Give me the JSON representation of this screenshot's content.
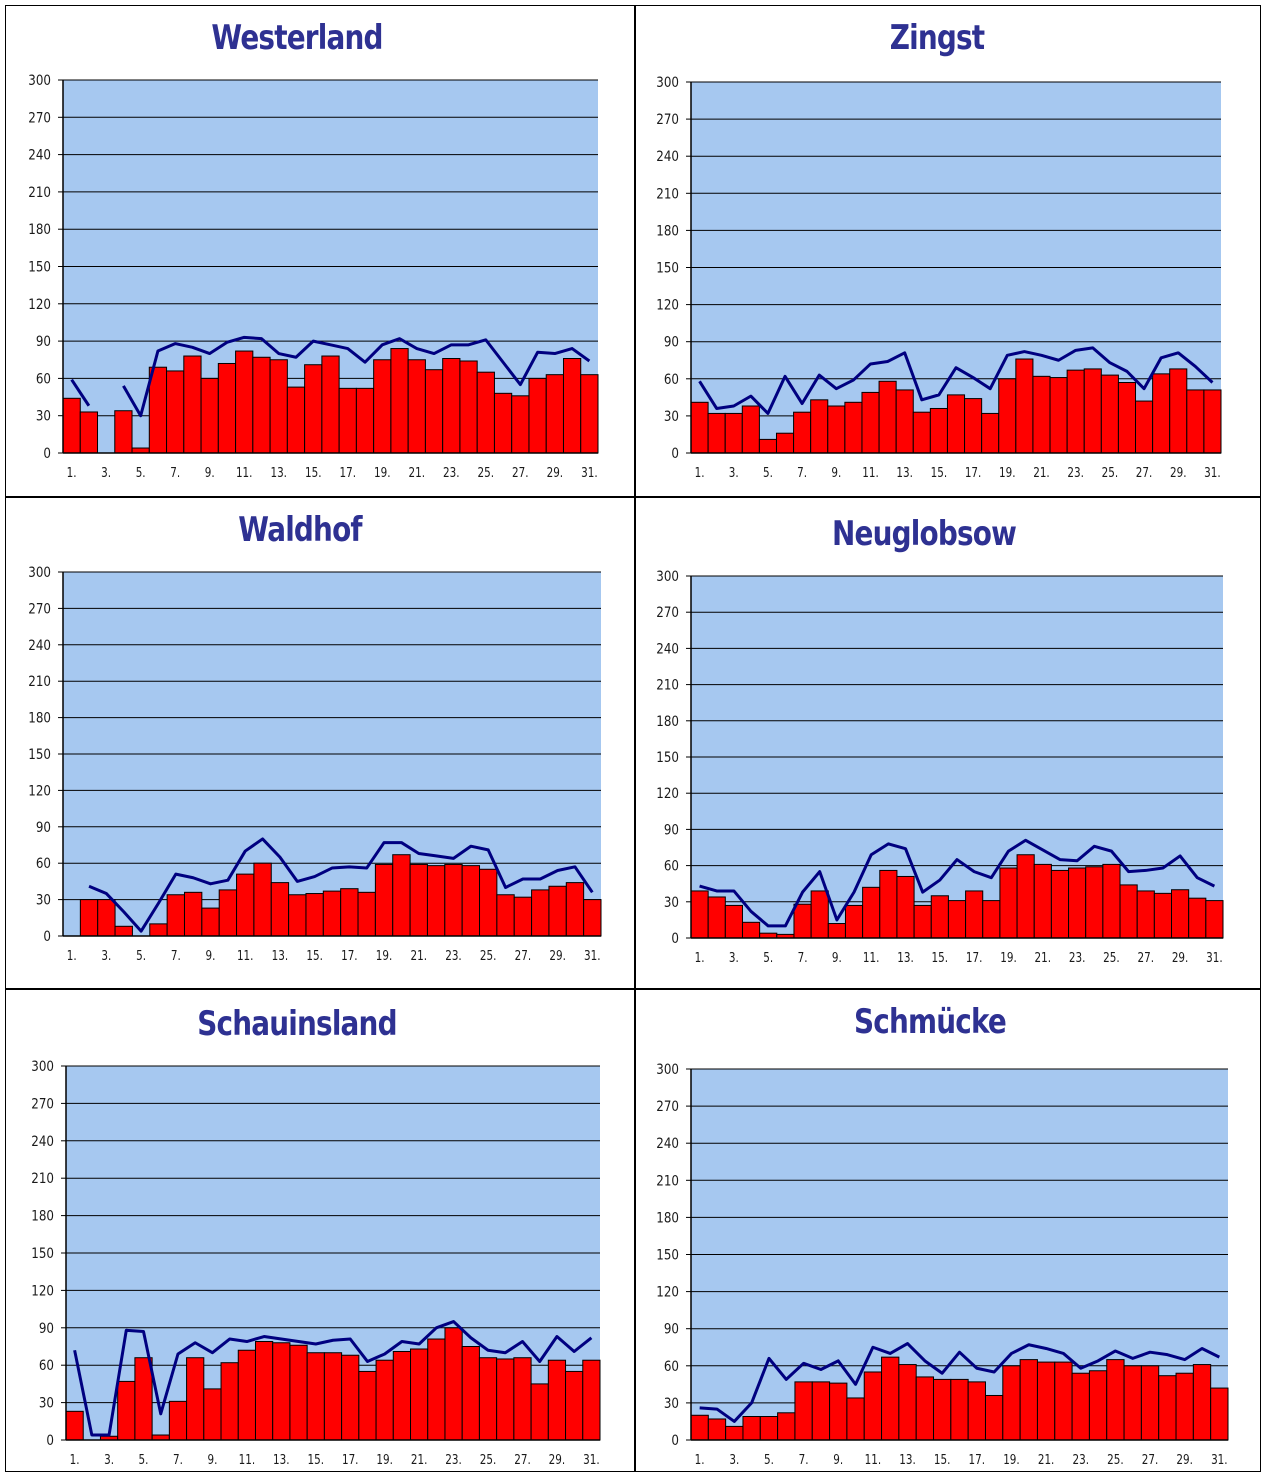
{
  "colors": {
    "plot_bg": "#a6c8f0",
    "bar": "#ff0000",
    "line": "#000080",
    "title": "#2e3192"
  },
  "chart_data": [
    {
      "type": "bar",
      "title": "Westerland",
      "x": [
        "1.",
        "2.",
        "3.",
        "4.",
        "5.",
        "6.",
        "7.",
        "8.",
        "9.",
        "10.",
        "11.",
        "12.",
        "13.",
        "14.",
        "15.",
        "16.",
        "17.",
        "18.",
        "19.",
        "20.",
        "21.",
        "22.",
        "23.",
        "24.",
        "25.",
        "26.",
        "27.",
        "28.",
        "29.",
        "30.",
        "31."
      ],
      "x_tick_labels": [
        "1.",
        "3.",
        "5.",
        "7.",
        "9.",
        "11.",
        "13.",
        "15.",
        "17.",
        "19.",
        "21.",
        "23.",
        "25.",
        "27.",
        "29.",
        "31."
      ],
      "ylim": [
        0,
        300
      ],
      "y_ticks": [
        0,
        30,
        60,
        90,
        120,
        150,
        180,
        210,
        240,
        270,
        300
      ],
      "grid": true,
      "series": [
        {
          "kind": "bar",
          "values": [
            44,
            33,
            0,
            34,
            4,
            69,
            66,
            78,
            60,
            72,
            82,
            77,
            75,
            53,
            71,
            78,
            52,
            52,
            75,
            84,
            75,
            67,
            76,
            74,
            65,
            48,
            46,
            60,
            63,
            76,
            63
          ]
        },
        {
          "kind": "line",
          "values": [
            59,
            38,
            null,
            54,
            30,
            82,
            88,
            85,
            80,
            89,
            93,
            92,
            80,
            77,
            90,
            87,
            84,
            73,
            87,
            92,
            84,
            80,
            87,
            87,
            91,
            73,
            55,
            81,
            80,
            84,
            74
          ]
        }
      ]
    },
    {
      "type": "bar",
      "title": "Zingst",
      "x": [
        "1.",
        "2.",
        "3.",
        "4.",
        "5.",
        "6.",
        "7.",
        "8.",
        "9.",
        "10.",
        "11.",
        "12.",
        "13.",
        "14.",
        "15.",
        "16.",
        "17.",
        "18.",
        "19.",
        "20.",
        "21.",
        "22.",
        "23.",
        "24.",
        "25.",
        "26.",
        "27.",
        "28.",
        "29.",
        "30.",
        "31."
      ],
      "x_tick_labels": [
        "1.",
        "3.",
        "5.",
        "7.",
        "9.",
        "11.",
        "13.",
        "15.",
        "17.",
        "19.",
        "21.",
        "23.",
        "25.",
        "27.",
        "29.",
        "31."
      ],
      "ylim": [
        0,
        300
      ],
      "y_ticks": [
        0,
        30,
        60,
        90,
        120,
        150,
        180,
        210,
        240,
        270,
        300
      ],
      "grid": true,
      "series": [
        {
          "kind": "bar",
          "values": [
            41,
            32,
            32,
            38,
            11,
            16,
            33,
            43,
            38,
            41,
            49,
            58,
            51,
            33,
            36,
            47,
            44,
            32,
            60,
            76,
            62,
            61,
            67,
            68,
            63,
            57,
            42,
            64,
            68,
            51,
            51
          ]
        },
        {
          "kind": "line",
          "values": [
            58,
            36,
            38,
            46,
            32,
            62,
            40,
            63,
            52,
            59,
            72,
            74,
            81,
            43,
            47,
            69,
            61,
            52,
            79,
            82,
            79,
            75,
            83,
            85,
            73,
            66,
            52,
            77,
            81,
            70,
            57
          ]
        }
      ]
    },
    {
      "type": "bar",
      "title": "Waldhof",
      "x": [
        "1.",
        "2.",
        "3.",
        "4.",
        "5.",
        "6.",
        "7.",
        "8.",
        "9.",
        "10.",
        "11.",
        "12.",
        "13.",
        "14.",
        "15.",
        "16.",
        "17.",
        "18.",
        "19.",
        "20.",
        "21.",
        "22.",
        "23.",
        "24.",
        "25.",
        "26.",
        "27.",
        "28.",
        "29.",
        "30.",
        "31."
      ],
      "x_tick_labels": [
        "1.",
        "3.",
        "5.",
        "7.",
        "9.",
        "11.",
        "13.",
        "15.",
        "17.",
        "19.",
        "21.",
        "23.",
        "25.",
        "27.",
        "29.",
        "31."
      ],
      "ylim": [
        0,
        300
      ],
      "y_ticks": [
        0,
        30,
        60,
        90,
        120,
        150,
        180,
        210,
        240,
        270,
        300
      ],
      "grid": true,
      "series": [
        {
          "kind": "bar",
          "values": [
            0,
            30,
            30,
            8,
            0,
            10,
            34,
            36,
            23,
            38,
            51,
            60,
            44,
            34,
            35,
            37,
            39,
            36,
            59,
            67,
            59,
            58,
            59,
            58,
            55,
            34,
            32,
            38,
            41,
            44,
            30
          ]
        },
        {
          "kind": "line",
          "values": [
            null,
            41,
            35,
            20,
            4,
            27,
            51,
            48,
            43,
            46,
            70,
            80,
            65,
            45,
            49,
            56,
            57,
            56,
            77,
            77,
            68,
            66,
            64,
            74,
            71,
            40,
            47,
            47,
            54,
            57,
            36
          ]
        }
      ]
    },
    {
      "type": "bar",
      "title": "Neuglobsow",
      "x": [
        "1.",
        "2.",
        "3.",
        "4.",
        "5.",
        "6.",
        "7.",
        "8.",
        "9.",
        "10.",
        "11.",
        "12.",
        "13.",
        "14.",
        "15.",
        "16.",
        "17.",
        "18.",
        "19.",
        "20.",
        "21.",
        "22.",
        "23.",
        "24.",
        "25.",
        "26.",
        "27.",
        "28.",
        "29.",
        "30.",
        "31."
      ],
      "x_tick_labels": [
        "1.",
        "3.",
        "5.",
        "7.",
        "9.",
        "11.",
        "13.",
        "15.",
        "17.",
        "19.",
        "21.",
        "23.",
        "25.",
        "27.",
        "29.",
        "31."
      ],
      "ylim": [
        0,
        300
      ],
      "y_ticks": [
        0,
        30,
        60,
        90,
        120,
        150,
        180,
        210,
        240,
        270,
        300
      ],
      "grid": true,
      "series": [
        {
          "kind": "bar",
          "values": [
            39,
            34,
            27,
            13,
            4,
            3,
            28,
            39,
            12,
            27,
            42,
            56,
            51,
            27,
            35,
            31,
            39,
            31,
            58,
            69,
            61,
            56,
            58,
            59,
            61,
            44,
            39,
            37,
            40,
            33,
            31
          ]
        },
        {
          "kind": "line",
          "values": [
            43,
            39,
            39,
            22,
            10,
            10,
            38,
            55,
            15,
            38,
            69,
            78,
            74,
            38,
            48,
            65,
            55,
            50,
            72,
            81,
            73,
            65,
            64,
            76,
            72,
            55,
            56,
            58,
            68,
            50,
            43
          ]
        }
      ]
    },
    {
      "type": "bar",
      "title": "Schauinsland",
      "x": [
        "1.",
        "2.",
        "3.",
        "4.",
        "5.",
        "6.",
        "7.",
        "8.",
        "9.",
        "10.",
        "11.",
        "12.",
        "13.",
        "14.",
        "15.",
        "16.",
        "17.",
        "18.",
        "19.",
        "20.",
        "21.",
        "22.",
        "23.",
        "24.",
        "25.",
        "26.",
        "27.",
        "28.",
        "29.",
        "30.",
        "31."
      ],
      "x_tick_labels": [
        "1.",
        "3.",
        "5.",
        "7.",
        "9.",
        "11.",
        "13.",
        "15.",
        "17.",
        "19.",
        "21.",
        "23.",
        "25.",
        "27.",
        "29.",
        "31."
      ],
      "ylim": [
        0,
        300
      ],
      "y_ticks": [
        0,
        30,
        60,
        90,
        120,
        150,
        180,
        210,
        240,
        270,
        300
      ],
      "grid": true,
      "series": [
        {
          "kind": "bar",
          "values": [
            23,
            0,
            3,
            47,
            66,
            4,
            31,
            66,
            41,
            62,
            72,
            79,
            78,
            76,
            70,
            70,
            68,
            55,
            64,
            71,
            73,
            81,
            90,
            75,
            66,
            65,
            66,
            45,
            64,
            55,
            64
          ]
        },
        {
          "kind": "line",
          "values": [
            72,
            4,
            4,
            88,
            87,
            21,
            69,
            78,
            70,
            81,
            79,
            83,
            81,
            79,
            77,
            80,
            81,
            63,
            69,
            79,
            77,
            90,
            95,
            82,
            72,
            70,
            79,
            63,
            83,
            71,
            82
          ]
        }
      ]
    },
    {
      "type": "bar",
      "title": "Schmücke",
      "x": [
        "1.",
        "2.",
        "3.",
        "4.",
        "5.",
        "6.",
        "7.",
        "8.",
        "9.",
        "10.",
        "11.",
        "12.",
        "13.",
        "14.",
        "15.",
        "16.",
        "17.",
        "18.",
        "19.",
        "20.",
        "21.",
        "22.",
        "23.",
        "24.",
        "25.",
        "26.",
        "27.",
        "28.",
        "29.",
        "30.",
        "31."
      ],
      "x_tick_labels": [
        "1.",
        "3.",
        "5.",
        "7.",
        "9.",
        "11.",
        "13.",
        "15.",
        "17.",
        "19.",
        "21.",
        "23.",
        "25.",
        "27.",
        "29.",
        "31."
      ],
      "ylim": [
        0,
        300
      ],
      "y_ticks": [
        0,
        30,
        60,
        90,
        120,
        150,
        180,
        210,
        240,
        270,
        300
      ],
      "grid": true,
      "series": [
        {
          "kind": "bar",
          "values": [
            20,
            17,
            11,
            19,
            19,
            22,
            47,
            47,
            46,
            34,
            55,
            67,
            61,
            51,
            49,
            49,
            47,
            36,
            60,
            65,
            63,
            63,
            54,
            56,
            65,
            60,
            60,
            52,
            54,
            61,
            42
          ]
        },
        {
          "kind": "line",
          "values": [
            26,
            25,
            15,
            30,
            66,
            49,
            62,
            57,
            64,
            45,
            75,
            70,
            78,
            64,
            54,
            71,
            58,
            55,
            70,
            77,
            74,
            70,
            58,
            64,
            72,
            66,
            71,
            69,
            65,
            74,
            67
          ]
        }
      ]
    }
  ]
}
